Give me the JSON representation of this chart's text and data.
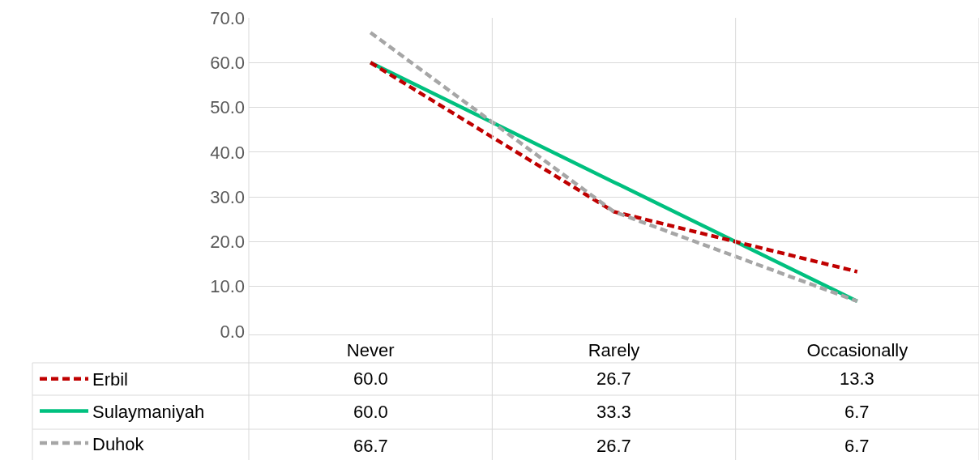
{
  "chart_data": {
    "type": "line",
    "categories": [
      "Never",
      "Rarely",
      "Occasionally"
    ],
    "series": [
      {
        "name": "Erbil",
        "color": "#c00000",
        "line_style": "dashed",
        "values": [
          60.0,
          26.7,
          13.3
        ],
        "value_labels": [
          "60.0",
          "26.7",
          "13.3"
        ]
      },
      {
        "name": "Sulaymaniyah",
        "color": "#00c07f",
        "line_style": "solid",
        "values": [
          60.0,
          33.3,
          6.7
        ],
        "value_labels": [
          "60.0",
          "33.3",
          "6.7"
        ]
      },
      {
        "name": "Duhok",
        "color": "#a6a6a6",
        "line_style": "dashed",
        "values": [
          66.7,
          26.7,
          6.7
        ],
        "value_labels": [
          "66.7",
          "26.7",
          "6.7"
        ]
      }
    ],
    "ylim": [
      0,
      70
    ],
    "yticks": [
      {
        "value": 0,
        "label": "0.0"
      },
      {
        "value": 10,
        "label": "10.0"
      },
      {
        "value": 20,
        "label": "20.0"
      },
      {
        "value": 30,
        "label": "30.0"
      },
      {
        "value": 40,
        "label": "40.0"
      },
      {
        "value": 50,
        "label": "50.0"
      },
      {
        "value": 60,
        "label": "60.0"
      },
      {
        "value": 70,
        "label": "70.0"
      }
    ],
    "grid": "y",
    "legend": "bottom",
    "marker": "none"
  }
}
